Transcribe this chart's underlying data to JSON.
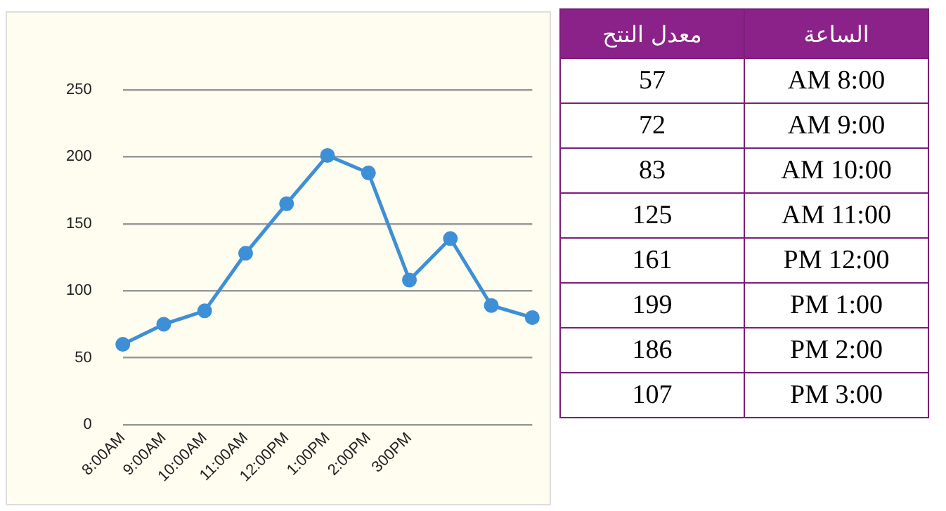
{
  "chart_data": [
    {
      "type": "line",
      "categories": [
        "8:00AM",
        "9:00AM",
        "10:00AM",
        "11:00AM",
        "12:00PM",
        "1:00PM",
        "2:00PM",
        "300PM",
        null,
        null,
        null
      ],
      "series": [
        {
          "color": "#3d8fd6",
          "values": [
            60,
            75,
            85,
            128,
            165,
            201,
            188,
            108,
            139,
            89,
            80
          ]
        }
      ],
      "ylim": [
        0,
        250
      ],
      "yticks": [
        0,
        50,
        100,
        150,
        200,
        250
      ],
      "grid": "y",
      "legend": false,
      "marker": "circle",
      "line_style": "solid"
    },
    {
      "type": "other",
      "xlabel": "الساعة",
      "ylabel": "معدل النتح",
      "categories": [
        "AM 8:00",
        "AM 9:00",
        "AM 10:00",
        "AM 11:00",
        "PM 12:00",
        "PM 1:00",
        "PM 2:00",
        "PM 3:00"
      ],
      "values": [
        57,
        72,
        83,
        125,
        161,
        199,
        186,
        107
      ],
      "data_labels": true
    }
  ]
}
